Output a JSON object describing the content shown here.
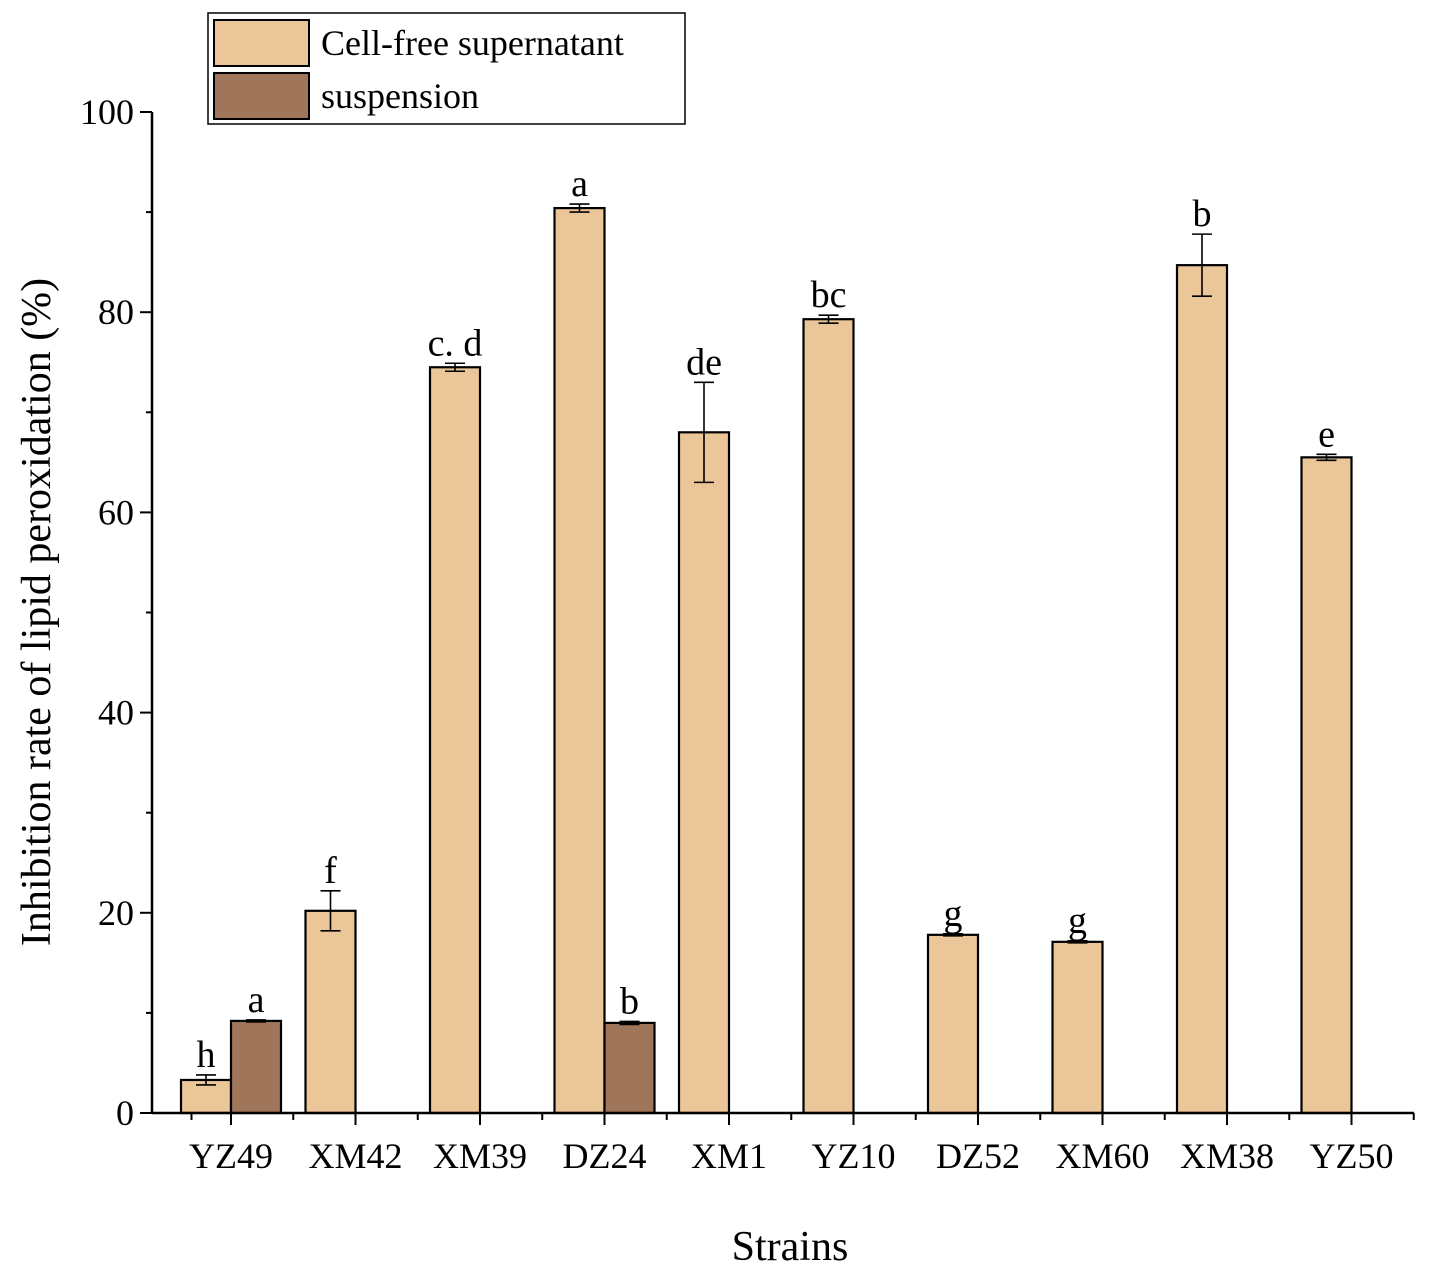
{
  "chart_data": {
    "type": "bar",
    "title": "",
    "xlabel": "Strains",
    "ylabel": "Inhibition rate of lipid peroxidation (%)",
    "ylim": [
      0,
      100
    ],
    "yticks": [
      0,
      20,
      40,
      60,
      80,
      100
    ],
    "categories": [
      "YZ49",
      "XM42",
      "XM39",
      "DZ24",
      "XM1",
      "YZ10",
      "DZ52",
      "XM60",
      "XM38",
      "YZ50"
    ],
    "legend_position": "top-left",
    "series": [
      {
        "name": "Cell-free supernatant",
        "color": "#ebc699",
        "values": [
          3.3,
          20.2,
          74.5,
          90.4,
          68.0,
          79.3,
          17.8,
          17.1,
          84.7,
          65.5
        ],
        "errors": [
          0.5,
          2.0,
          0.4,
          0.4,
          5.0,
          0.4,
          0.1,
          0.1,
          3.1,
          0.3
        ],
        "labels": [
          "h",
          "f",
          "c. d",
          "a",
          "de",
          "bc",
          "g",
          "g",
          "b",
          "e"
        ]
      },
      {
        "name": "suspension",
        "color": "#a0765a",
        "values": [
          9.2,
          null,
          null,
          9.0,
          null,
          null,
          null,
          null,
          null,
          null
        ],
        "errors": [
          0.1,
          null,
          null,
          0.15,
          null,
          null,
          null,
          null,
          null,
          null
        ],
        "labels": [
          "a",
          null,
          null,
          "b",
          null,
          null,
          null,
          null,
          null,
          null
        ]
      }
    ]
  }
}
